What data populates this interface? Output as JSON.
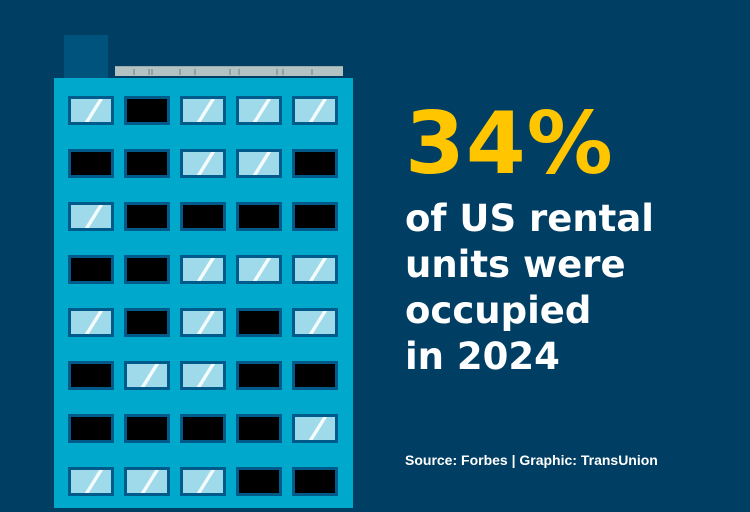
{
  "infographic": {
    "headline": "34%",
    "body_lines": [
      "of US rental",
      "units were",
      "occupied",
      "in 2024"
    ],
    "source": "Source: Forbes | Graphic: TransUnion",
    "colors": {
      "background": "#003f63",
      "building": "#00a8cb",
      "lit_window": "#9fdaea",
      "dark_window": "#000000",
      "window_frame": "#015b8a",
      "headline": "#ffc600",
      "text": "#ffffff",
      "roof_rail": "#b3c3c3"
    },
    "building": {
      "columns": 5,
      "rows": 8,
      "windows": [
        [
          "lit",
          "dark",
          "lit",
          "lit",
          "lit"
        ],
        [
          "dark",
          "dark",
          "lit",
          "lit",
          "dark"
        ],
        [
          "lit",
          "dark",
          "dark",
          "dark",
          "dark"
        ],
        [
          "dark",
          "dark",
          "lit",
          "lit",
          "lit"
        ],
        [
          "lit",
          "dark",
          "lit",
          "dark",
          "lit"
        ],
        [
          "dark",
          "lit",
          "lit",
          "dark",
          "dark"
        ],
        [
          "dark",
          "dark",
          "dark",
          "dark",
          "lit"
        ],
        [
          "lit",
          "lit",
          "lit",
          "dark",
          "dark"
        ]
      ]
    }
  }
}
